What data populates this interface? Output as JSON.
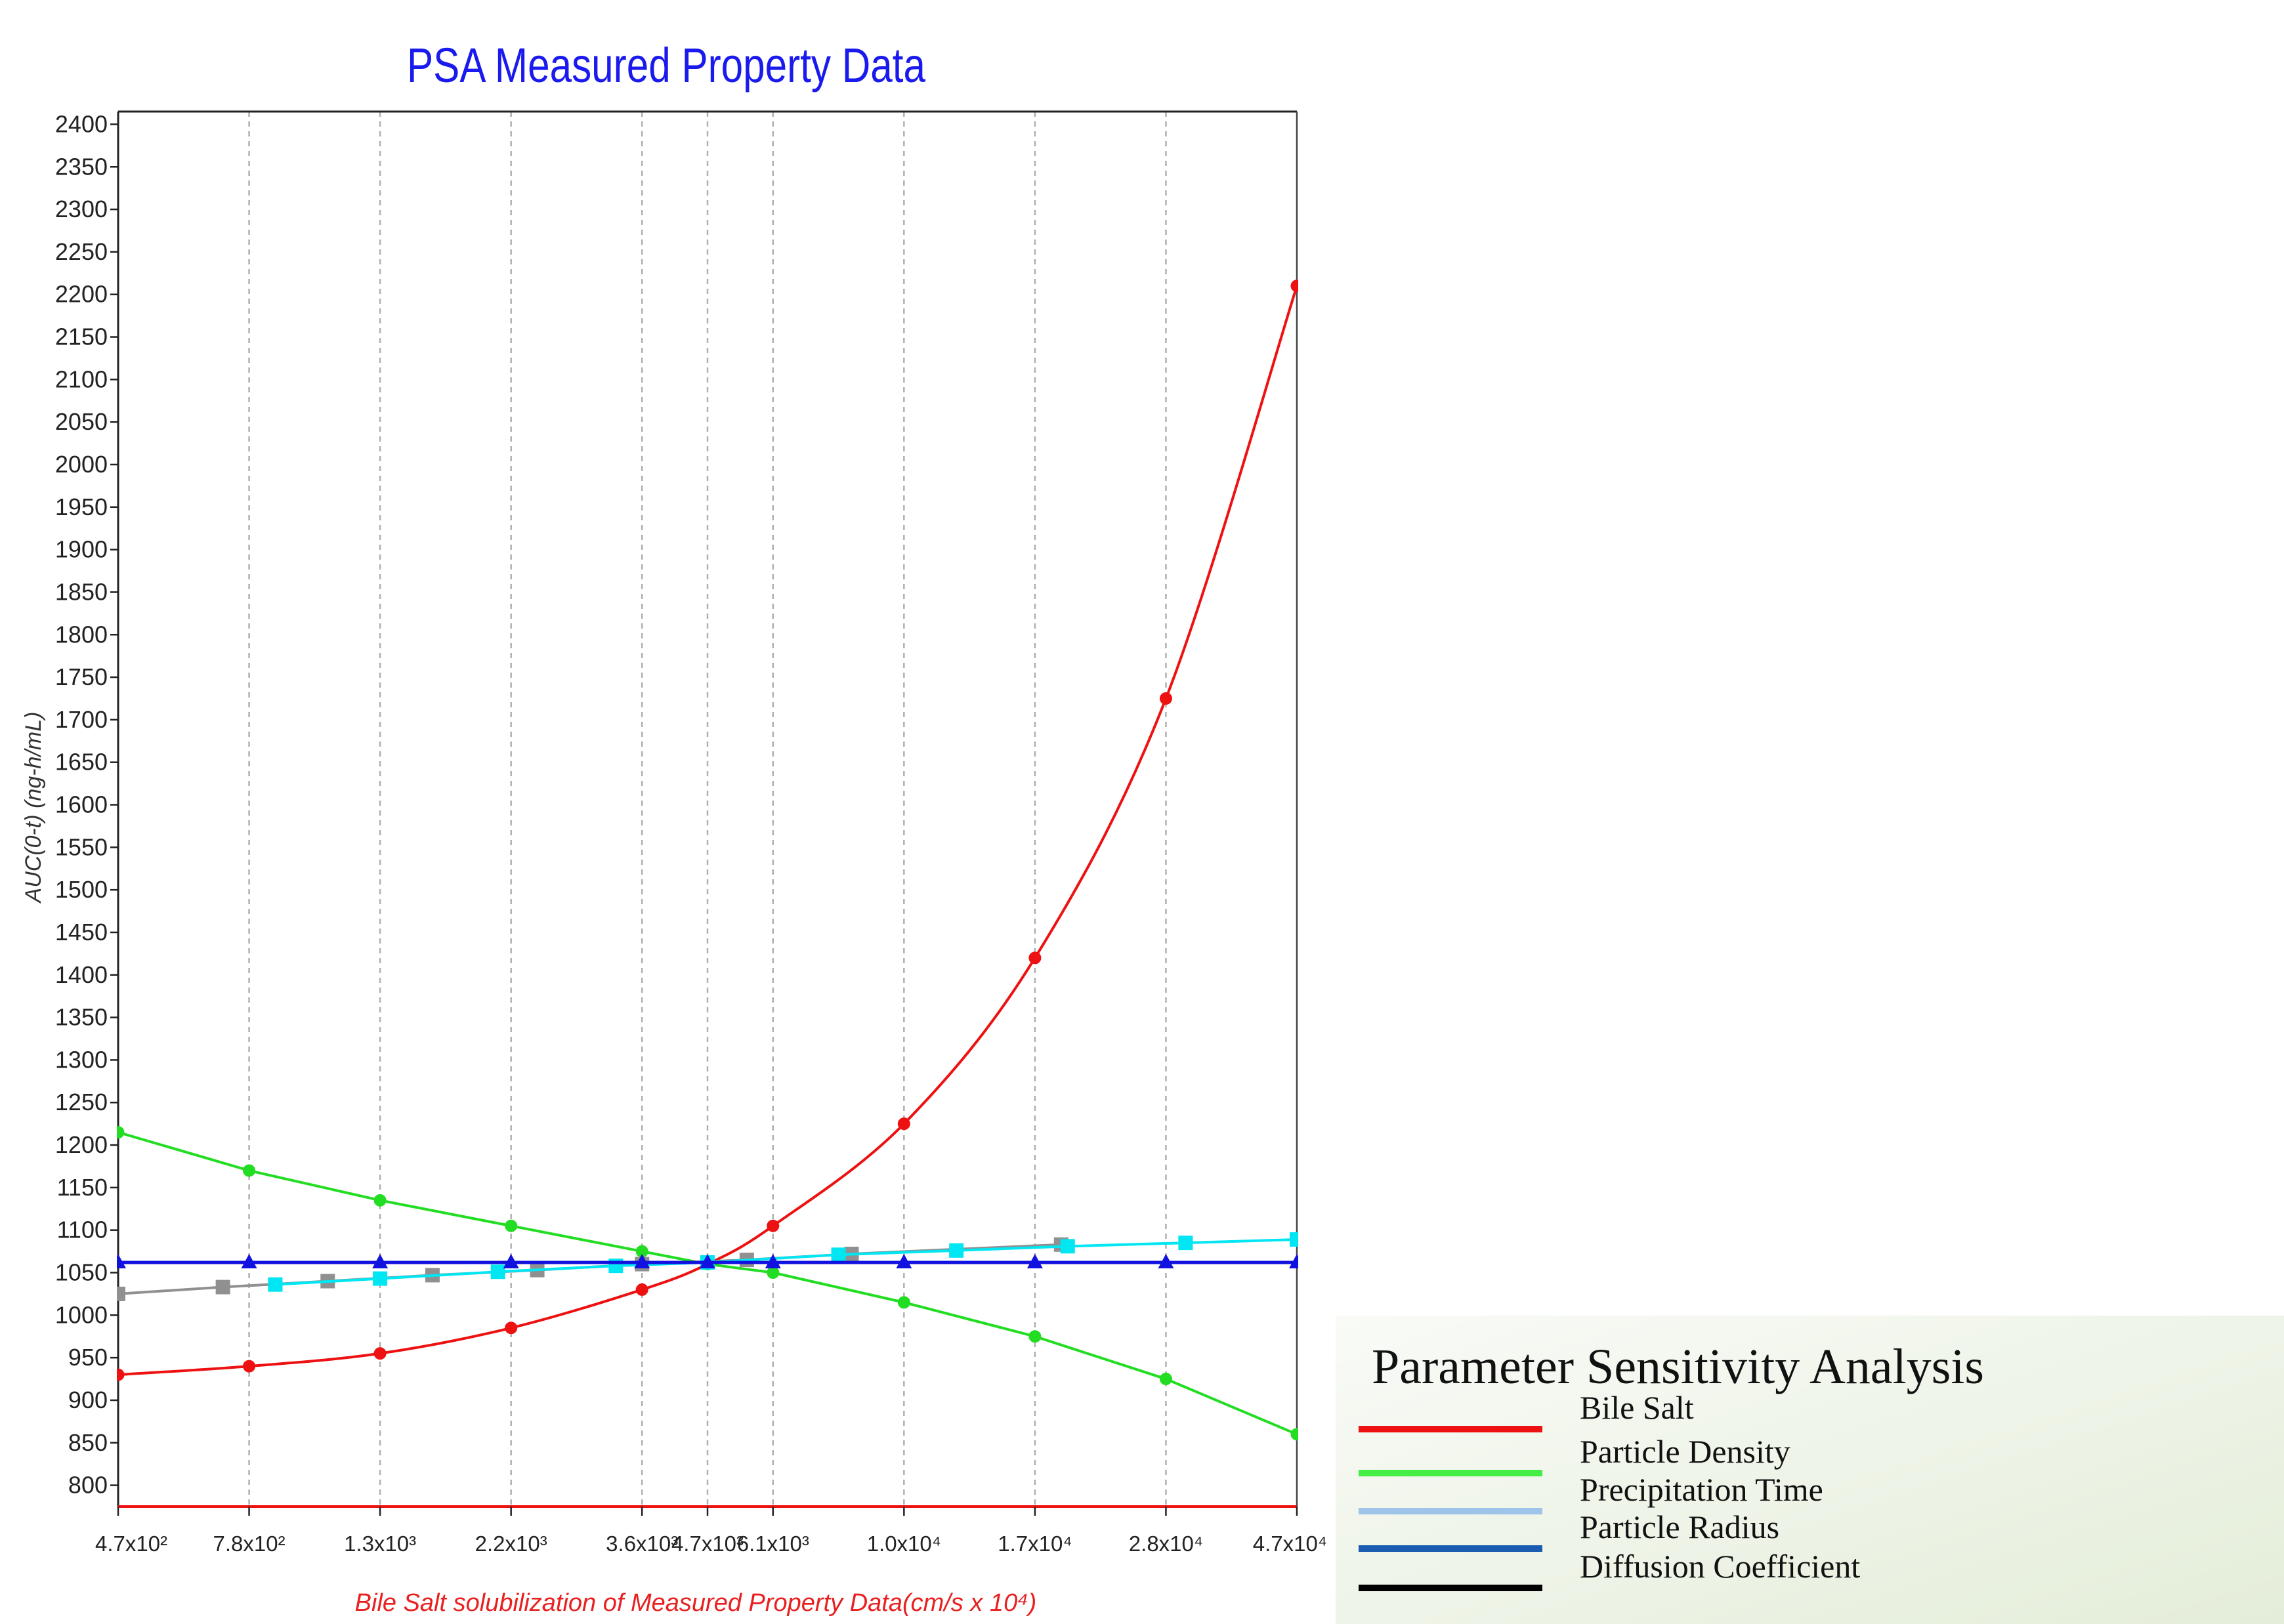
{
  "chart_data": {
    "type": "line",
    "title": "PSA Measured Property Data",
    "xlabel": "Bile Salt solubilization of Measured Property Data(cm/s x 10⁴)",
    "ylabel": "AUC(0-t) (ng-h/mL)",
    "ylim": [
      775,
      2415
    ],
    "y_ticks": [
      800,
      850,
      900,
      950,
      1000,
      1050,
      1100,
      1150,
      1200,
      1250,
      1300,
      1350,
      1400,
      1450,
      1500,
      1550,
      1600,
      1650,
      1700,
      1750,
      1800,
      1850,
      1900,
      1950,
      2000,
      2050,
      2100,
      2150,
      2200,
      2250,
      2300,
      2350,
      2400
    ],
    "categories": [
      "4.7x10²",
      "7.8x10²",
      "1.3x10³",
      "2.2x10³",
      "3.6x10³",
      "4.7x10³",
      "6.1x10³",
      "1.0x10⁴",
      "1.7x10⁴",
      "2.8x10⁴",
      "4.7x10⁴"
    ],
    "x_positions": [
      0,
      1,
      2,
      3,
      4,
      4.5,
      5,
      6,
      7,
      8,
      9
    ],
    "grid": "vertical-dashed",
    "series": [
      {
        "name": "Bile Salt",
        "color": "#ee1111",
        "marker": "circle",
        "x": [
          0,
          1,
          2,
          3,
          4,
          4.5,
          5,
          6,
          7,
          8,
          9
        ],
        "values": [
          930,
          940,
          955,
          985,
          1030,
          1060,
          1105,
          1225,
          1420,
          1725,
          2210
        ]
      },
      {
        "name": "Particle Density",
        "color": "#22dd22",
        "marker": "circle",
        "x": [
          0,
          1,
          2,
          3,
          4,
          4.5,
          5,
          6,
          7,
          8,
          9
        ],
        "values": [
          1215,
          1170,
          1135,
          1105,
          1075,
          1060,
          1050,
          1015,
          975,
          925,
          860
        ]
      },
      {
        "name": "Precipitation Time",
        "color": "#909090",
        "marker": "square",
        "x": [
          0,
          0.8,
          1.6,
          2.4,
          3.2,
          4.0,
          4.8,
          5.6,
          7.2
        ],
        "values": [
          1025,
          1033,
          1040,
          1047,
          1053,
          1060,
          1065,
          1072,
          1083
        ]
      },
      {
        "name": "Diffusion Coefficient",
        "color": "#00e6f2",
        "marker": "square",
        "x": [
          1.2,
          2.0,
          2.9,
          3.8,
          4.5,
          5.5,
          6.4,
          7.25,
          8.15,
          9
        ],
        "values": [
          1036,
          1043,
          1051,
          1058,
          1062,
          1071,
          1076,
          1081,
          1085,
          1089
        ]
      },
      {
        "name": "Particle Radius",
        "color": "#1212e0",
        "marker": "triangle",
        "x": [
          0,
          1,
          2,
          3,
          4,
          4.5,
          5,
          6,
          7,
          8,
          9
        ],
        "values": [
          1062,
          1062,
          1062,
          1062,
          1062,
          1062,
          1062,
          1062,
          1062,
          1062,
          1062
        ]
      }
    ],
    "baseline": {
      "value": 775,
      "color": "#ee1111"
    }
  },
  "legend": {
    "title": "Parameter Sensitivity Analysis",
    "items": [
      {
        "label": "Bile Salt",
        "color": "#ee1111"
      },
      {
        "label": "Particle Density",
        "color": "#44ee44"
      },
      {
        "label": "Precipitation Time",
        "color": "#9fc4ea"
      },
      {
        "label": "Particle Radius",
        "color": "#1a5cb0"
      },
      {
        "label": "Diffusion Coefficient",
        "color": "#000000"
      }
    ]
  }
}
